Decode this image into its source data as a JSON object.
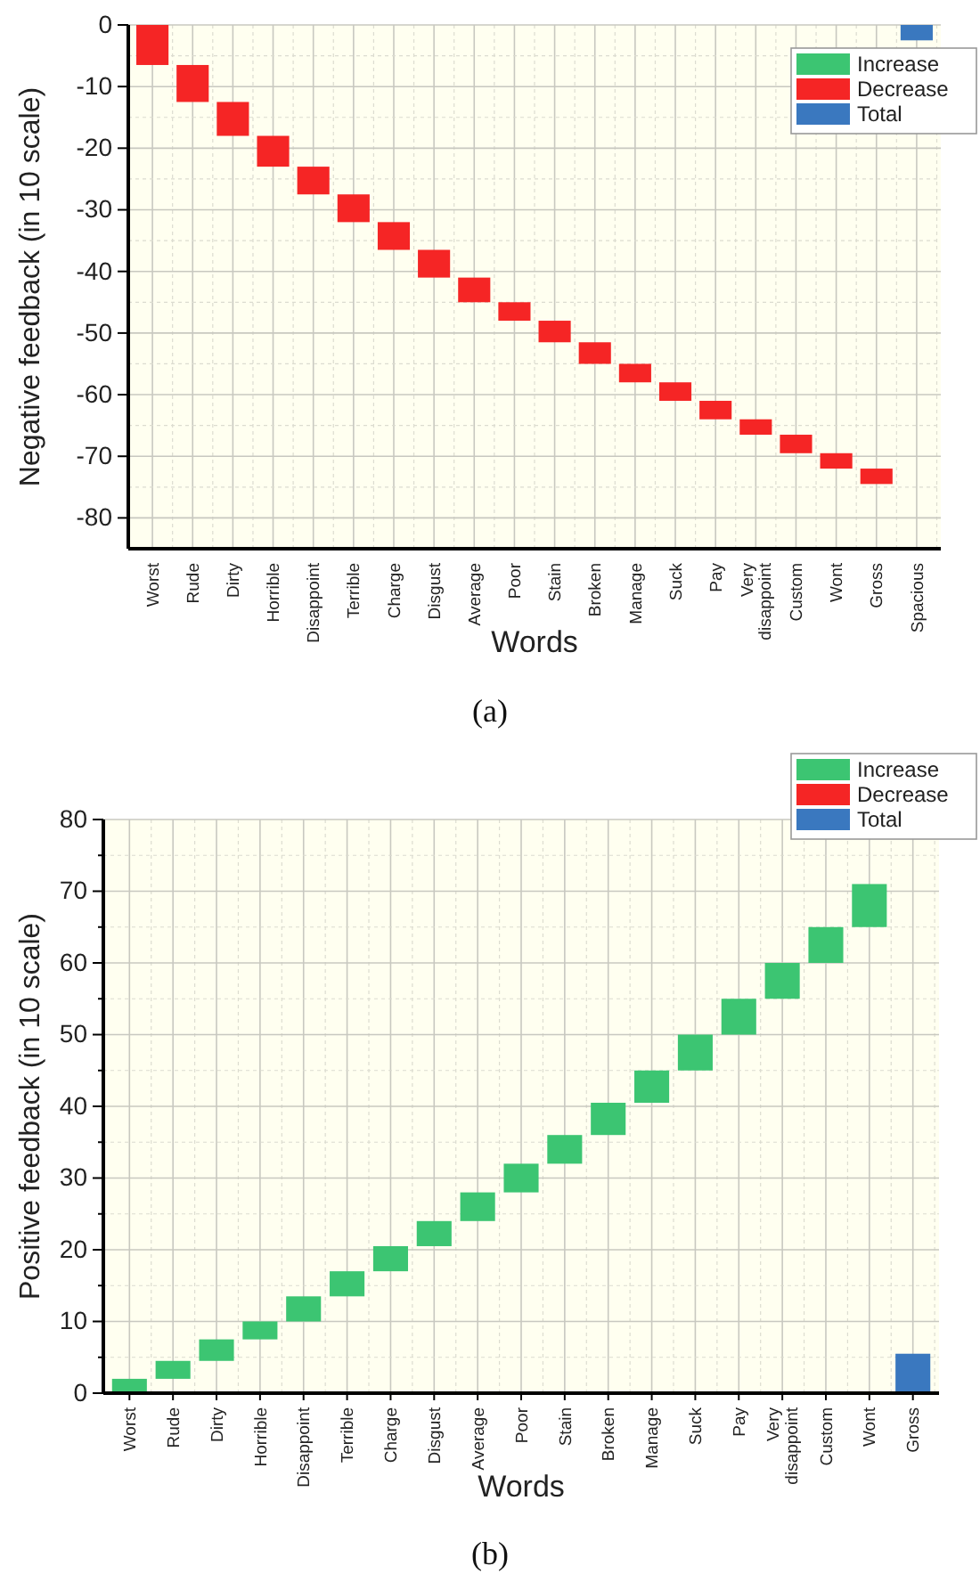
{
  "chart_data": [
    {
      "type": "bar",
      "title": "(a)",
      "xlabel": "Words",
      "ylabel": "Negative feedback (in 10 scale)",
      "categories": [
        "Worst",
        "Rude",
        "Dirty",
        "Horrible",
        "Disappoint",
        "Terrible",
        "Charge",
        "Disgust",
        "Average",
        "Poor",
        "Stain",
        "Broken",
        "Manage",
        "Suck",
        "Pay",
        "Very disappoint",
        "Custom",
        "Wont",
        "Gross",
        "Spacious"
      ],
      "series": [
        {
          "name": "Increase",
          "color": "#3cc572",
          "values": [
            null,
            null,
            null,
            null,
            null,
            null,
            null,
            null,
            null,
            null,
            null,
            null,
            null,
            null,
            null,
            null,
            null,
            null,
            null,
            null
          ],
          "base": [
            null,
            null,
            null,
            null,
            null,
            null,
            null,
            null,
            null,
            null,
            null,
            null,
            null,
            null,
            null,
            null,
            null,
            null,
            null,
            null
          ]
        },
        {
          "name": "Decrease",
          "color": "#f52525",
          "values": [
            -6.5,
            -6,
            -5.5,
            -5,
            -4.5,
            -4.5,
            -4.5,
            -4.5,
            -4,
            -3,
            -3.5,
            -3.5,
            -3,
            -3,
            -3,
            -2.5,
            -3,
            -2.5,
            -2.5,
            null
          ],
          "base": [
            0,
            -6.5,
            -12.5,
            -18,
            -23,
            -27.5,
            -32,
            -36.5,
            -41,
            -45,
            -48,
            -51.5,
            -55,
            -58,
            -61,
            -64,
            -66.5,
            -69.5,
            -72,
            null
          ]
        },
        {
          "name": "Total",
          "color": "#3a78bf",
          "values": [
            null,
            null,
            null,
            null,
            null,
            null,
            null,
            null,
            null,
            null,
            null,
            null,
            null,
            null,
            null,
            null,
            null,
            null,
            null,
            -2.5
          ],
          "base": [
            null,
            null,
            null,
            null,
            null,
            null,
            null,
            null,
            null,
            null,
            null,
            null,
            null,
            null,
            null,
            null,
            null,
            null,
            null,
            0
          ]
        }
      ],
      "ylim": [
        -85,
        0
      ],
      "yticks": [
        0,
        -10,
        -20,
        -30,
        -40,
        -50,
        -60,
        -70,
        -80
      ],
      "grid": true,
      "legend": "top right"
    },
    {
      "type": "bar",
      "title": "(b)",
      "xlabel": "Words",
      "ylabel": "Positive feedback (in 10 scale)",
      "categories": [
        "Worst",
        "Rude",
        "Dirty",
        "Horrible",
        "Disappoint",
        "Terrible",
        "Charge",
        "Disgust",
        "Average",
        "Poor",
        "Stain",
        "Broken",
        "Manage",
        "Suck",
        "Pay",
        "Very disappoint",
        "Custom",
        "Wont",
        "Gross"
      ],
      "series": [
        {
          "name": "Increase",
          "color": "#3cc572",
          "values": [
            2,
            2.5,
            3,
            2.5,
            3.5,
            3.5,
            3.5,
            3.5,
            4,
            4,
            4,
            4.5,
            4.5,
            5,
            5,
            5,
            5,
            6,
            null
          ],
          "base": [
            0,
            2,
            4.5,
            7.5,
            10,
            13.5,
            17,
            20.5,
            24,
            28,
            32,
            36,
            40.5,
            45,
            50,
            55,
            60,
            65,
            null
          ]
        },
        {
          "name": "Decrease",
          "color": "#f52525",
          "values": [
            null,
            null,
            null,
            null,
            null,
            null,
            null,
            null,
            null,
            null,
            null,
            null,
            null,
            null,
            null,
            null,
            null,
            null,
            null
          ],
          "base": [
            null,
            null,
            null,
            null,
            null,
            null,
            null,
            null,
            null,
            null,
            null,
            null,
            null,
            null,
            null,
            null,
            null,
            null,
            null
          ]
        },
        {
          "name": "Total",
          "color": "#3a78bf",
          "values": [
            null,
            null,
            null,
            null,
            null,
            null,
            null,
            null,
            null,
            null,
            null,
            null,
            null,
            null,
            null,
            null,
            null,
            null,
            5.5
          ],
          "base": [
            null,
            null,
            null,
            null,
            null,
            null,
            null,
            null,
            null,
            null,
            null,
            null,
            null,
            null,
            null,
            null,
            null,
            null,
            0
          ]
        }
      ],
      "ylim": [
        0,
        80
      ],
      "yticks": [
        0,
        10,
        20,
        30,
        40,
        50,
        60,
        70,
        80
      ],
      "grid": true,
      "legend": "top right"
    }
  ]
}
